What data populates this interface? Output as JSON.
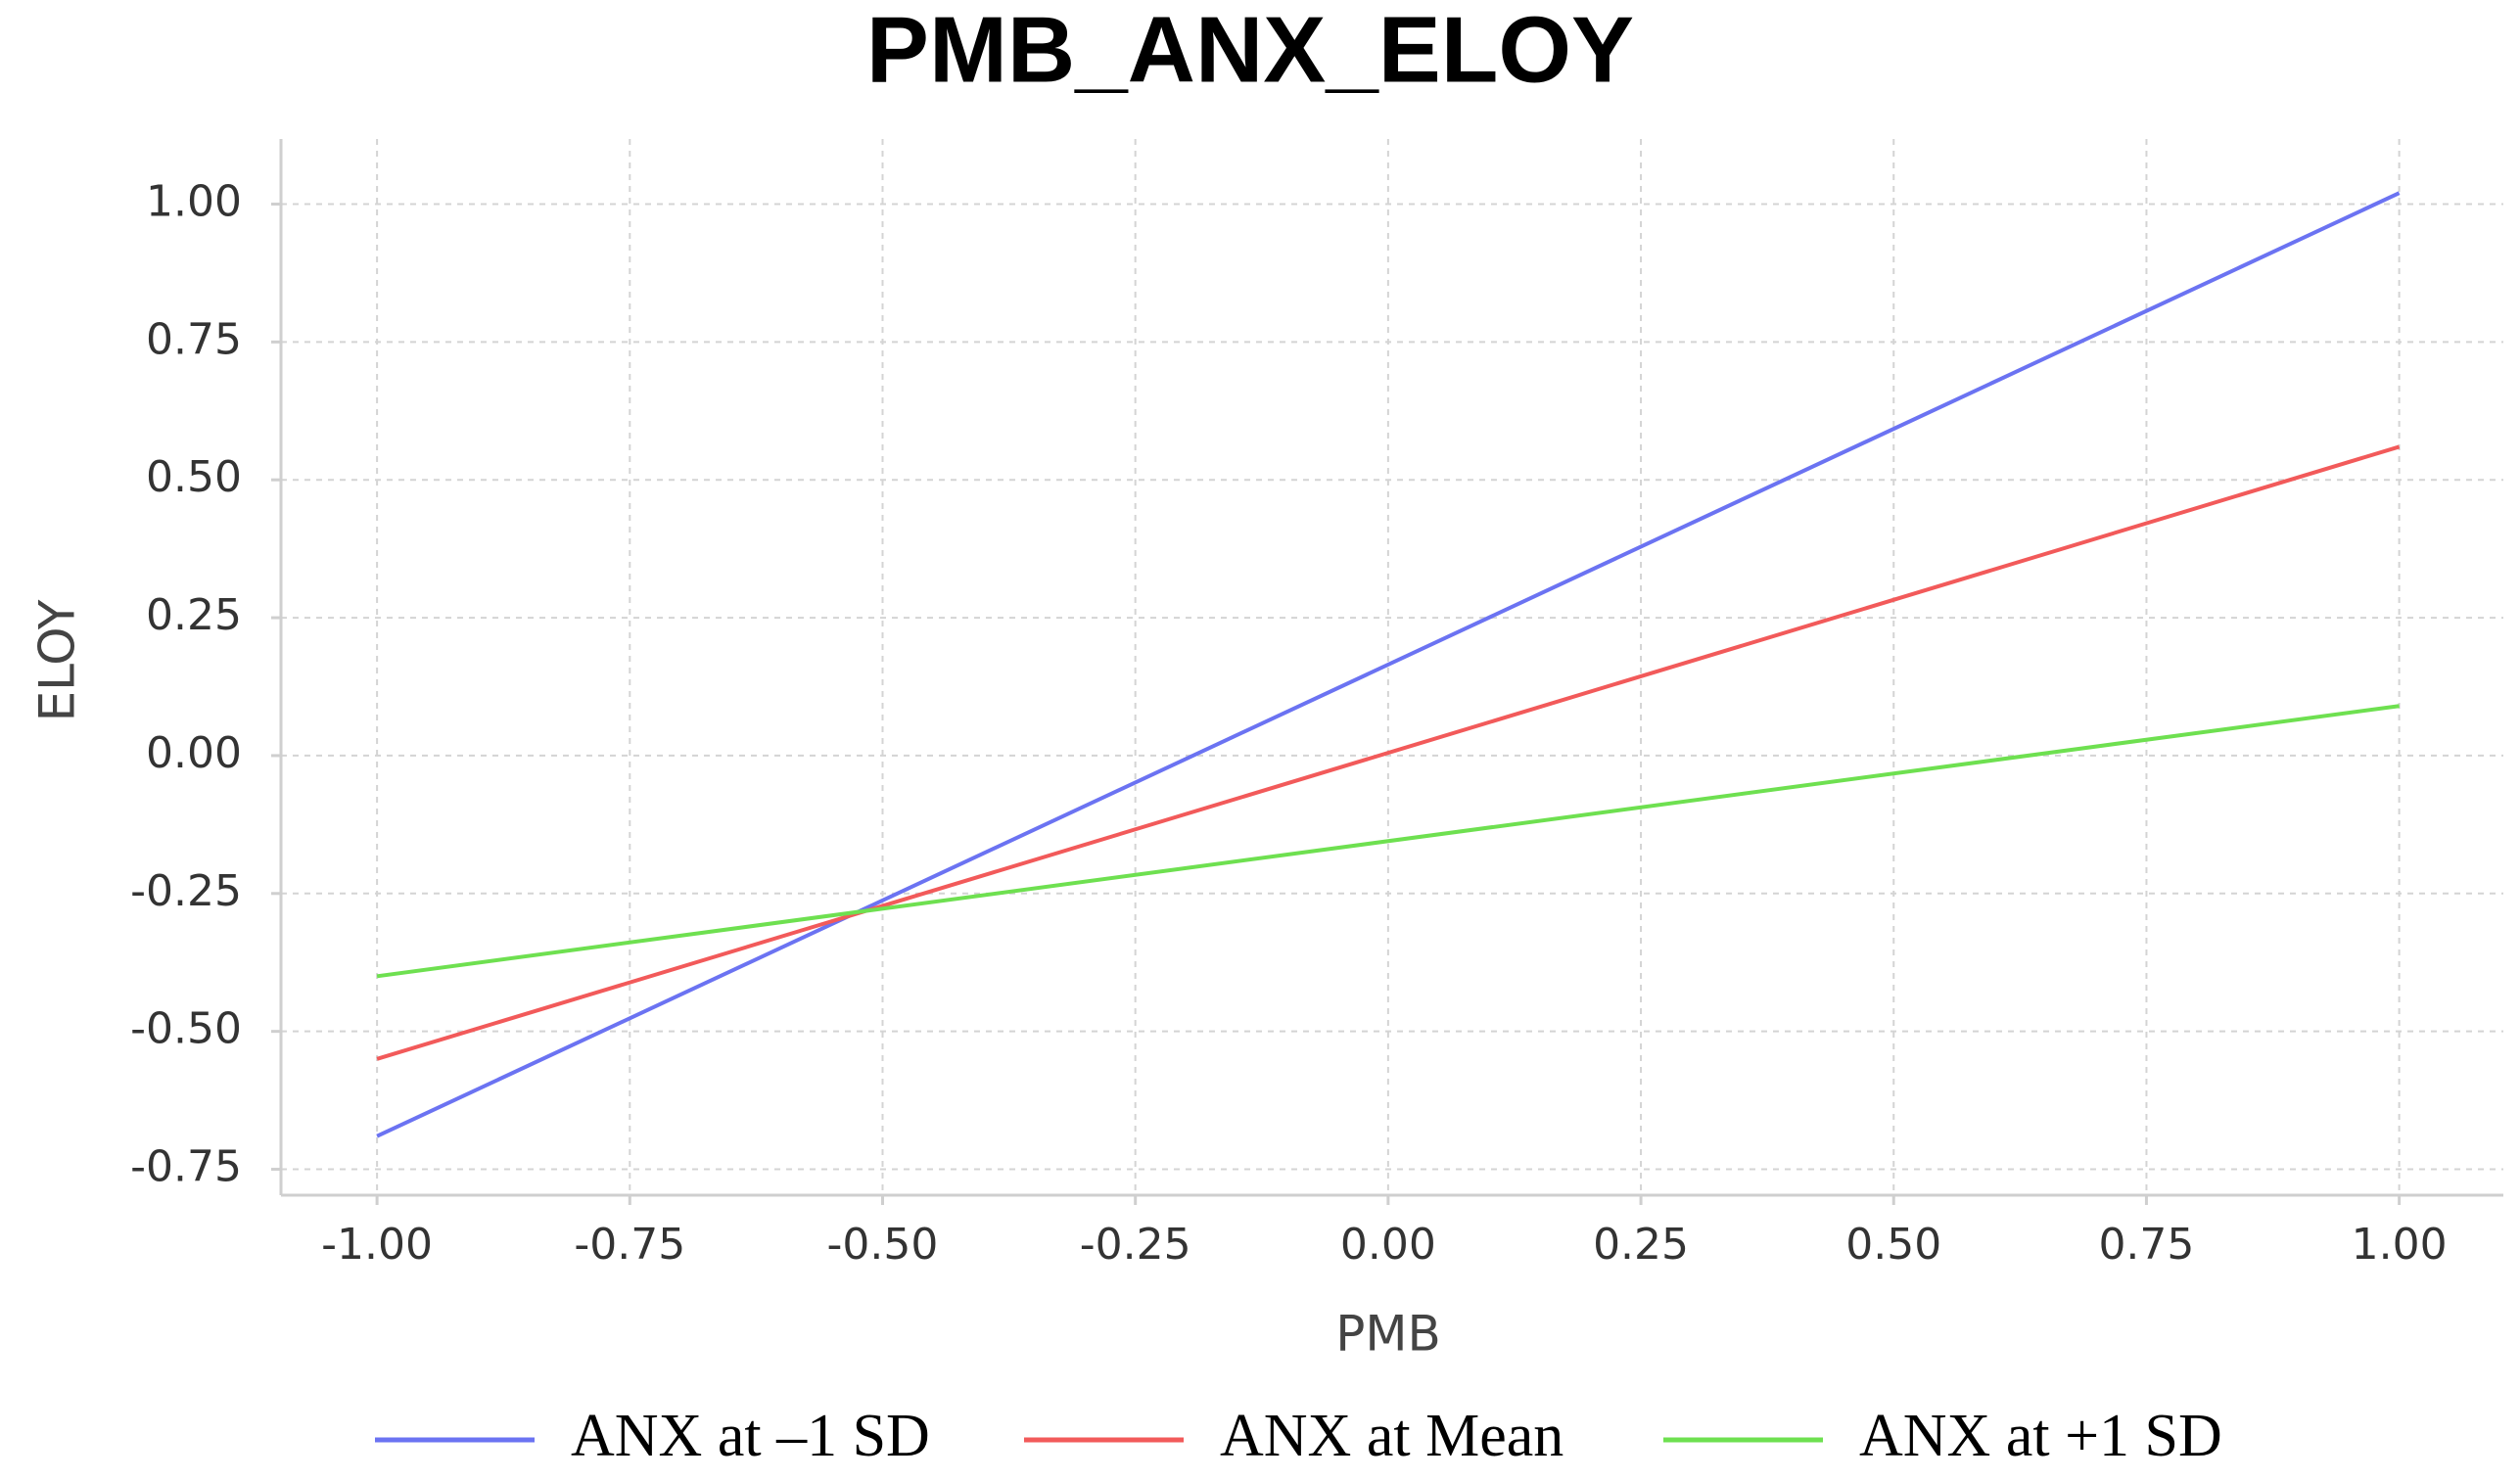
{
  "chart_data": {
    "type": "line",
    "title": "PMB_ANX_ELOY",
    "x_label": "PMB",
    "y_label": "ELOY",
    "x": [
      -1,
      1
    ],
    "series": [
      {
        "name": "ANX at –1 SD",
        "color": "#6b73f2",
        "values": [
          -0.69,
          1.02
        ]
      },
      {
        "name": "ANX at Mean",
        "color": "#f25a5a",
        "values": [
          -0.55,
          0.56
        ]
      },
      {
        "name": "ANX at +1 SD",
        "color": "#6ee050",
        "values": [
          -0.4,
          0.09
        ]
      }
    ],
    "xlim": [
      -1.095,
      1.103
    ],
    "xticks": [
      {
        "value": -1,
        "label": "-1.00"
      },
      {
        "value": -0.75,
        "label": "-0.75"
      },
      {
        "value": -0.5,
        "label": "-0.50"
      },
      {
        "value": -0.25,
        "label": "-0.25"
      },
      {
        "value": 0,
        "label": "0.00"
      },
      {
        "value": 0.25,
        "label": "0.25"
      },
      {
        "value": 0.5,
        "label": "0.50"
      },
      {
        "value": 0.75,
        "label": "0.75"
      },
      {
        "value": 1,
        "label": "1.00"
      }
    ],
    "ylim": [
      -0.797,
      1.118
    ],
    "yticks": [
      {
        "value": -0.75,
        "label": "-0.75"
      },
      {
        "value": -0.5,
        "label": "-0.50"
      },
      {
        "value": -0.25,
        "label": "-0.25"
      },
      {
        "value": 0,
        "label": "0.00"
      },
      {
        "value": 0.25,
        "label": "0.25"
      },
      {
        "value": 0.5,
        "label": "0.50"
      },
      {
        "value": 0.75,
        "label": "0.75"
      },
      {
        "value": 1,
        "label": "1.00"
      }
    ],
    "grid": true
  }
}
